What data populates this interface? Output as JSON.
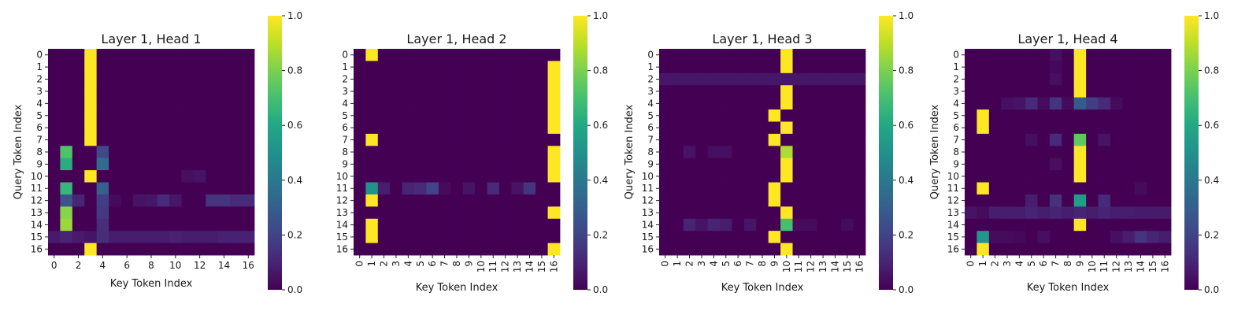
{
  "colorbar": {
    "ticks": [
      "0.0",
      "0.2",
      "0.4",
      "0.6",
      "0.8",
      "1.0"
    ]
  },
  "chart_data": [
    {
      "type": "heatmap",
      "title": "Layer 1, Head 1",
      "xlabel": "Key Token Index",
      "ylabel": "Query Token Index",
      "x_tick_labels": [
        "0",
        "2",
        "4",
        "6",
        "8",
        "10",
        "12",
        "14",
        "16"
      ],
      "x_tick_rotation": 0,
      "y_tick_labels": [
        "0",
        "1",
        "2",
        "3",
        "4",
        "5",
        "6",
        "7",
        "8",
        "9",
        "10",
        "11",
        "12",
        "13",
        "14",
        "15",
        "16"
      ],
      "vmin": 0,
      "vmax": 1,
      "colormap": "viridis",
      "matrix": [
        [
          0,
          0,
          0,
          1,
          0,
          0,
          0,
          0,
          0,
          0,
          0,
          0,
          0,
          0,
          0,
          0,
          0
        ],
        [
          0,
          0,
          0,
          1,
          0,
          0,
          0,
          0,
          0,
          0,
          0,
          0,
          0,
          0,
          0,
          0,
          0
        ],
        [
          0,
          0,
          0,
          1,
          0,
          0,
          0,
          0,
          0,
          0,
          0,
          0,
          0,
          0,
          0,
          0,
          0
        ],
        [
          0,
          0,
          0,
          1,
          0,
          0,
          0,
          0,
          0,
          0,
          0,
          0,
          0,
          0,
          0,
          0,
          0
        ],
        [
          0,
          0,
          0,
          1,
          0,
          0,
          0,
          0,
          0,
          0,
          0,
          0,
          0,
          0,
          0,
          0,
          0
        ],
        [
          0,
          0,
          0,
          1,
          0,
          0,
          0,
          0,
          0,
          0,
          0,
          0,
          0,
          0,
          0,
          0,
          0
        ],
        [
          0,
          0,
          0,
          1,
          0,
          0,
          0,
          0,
          0,
          0,
          0,
          0,
          0,
          0,
          0,
          0,
          0
        ],
        [
          0,
          0,
          0,
          1,
          0,
          0,
          0,
          0,
          0,
          0,
          0,
          0,
          0,
          0,
          0,
          0,
          0
        ],
        [
          0,
          0.72,
          0,
          0,
          0.22,
          0,
          0,
          0,
          0,
          0,
          0,
          0,
          0,
          0,
          0,
          0,
          0
        ],
        [
          0,
          0.62,
          0,
          0,
          0.35,
          0,
          0,
          0,
          0,
          0,
          0,
          0,
          0,
          0,
          0,
          0,
          0
        ],
        [
          0,
          0,
          0,
          1,
          0,
          0,
          0,
          0,
          0,
          0,
          0,
          0.04,
          0.05,
          0,
          0,
          0,
          0
        ],
        [
          0,
          0.66,
          0,
          0,
          0.3,
          0,
          0,
          0,
          0,
          0,
          0,
          0,
          0,
          0,
          0,
          0,
          0
        ],
        [
          0,
          0.25,
          0.1,
          0,
          0.18,
          0.03,
          0,
          0.05,
          0.06,
          0.12,
          0.06,
          0,
          0,
          0.15,
          0.15,
          0.12,
          0.12
        ],
        [
          0,
          0.82,
          0,
          0,
          0.17,
          0,
          0,
          0,
          0,
          0,
          0,
          0,
          0,
          0,
          0,
          0,
          0
        ],
        [
          0,
          0.85,
          0,
          0,
          0.13,
          0,
          0,
          0,
          0,
          0,
          0,
          0,
          0,
          0,
          0,
          0,
          0
        ],
        [
          0.07,
          0.1,
          0.07,
          0.05,
          0.13,
          0.08,
          0.08,
          0.08,
          0.08,
          0.08,
          0.09,
          0.08,
          0.08,
          0.08,
          0.09,
          0.09,
          0.09
        ],
        [
          0,
          0,
          0,
          1,
          0,
          0,
          0,
          0,
          0,
          0,
          0,
          0,
          0,
          0,
          0,
          0,
          0
        ]
      ]
    },
    {
      "type": "heatmap",
      "title": "Layer 1, Head 2",
      "xlabel": "Key Token Index",
      "ylabel": "",
      "x_tick_labels": [
        "0",
        "1",
        "2",
        "3",
        "4",
        "5",
        "6",
        "7",
        "8",
        "9",
        "10",
        "11",
        "12",
        "13",
        "14",
        "15",
        "16"
      ],
      "x_tick_rotation": 90,
      "y_tick_labels": [
        "0",
        "1",
        "2",
        "3",
        "4",
        "5",
        "6",
        "7",
        "8",
        "9",
        "10",
        "11",
        "12",
        "13",
        "14",
        "15",
        "16"
      ],
      "vmin": 0,
      "vmax": 1,
      "colormap": "viridis",
      "matrix": [
        [
          0,
          1,
          0,
          0,
          0,
          0,
          0,
          0,
          0,
          0,
          0,
          0,
          0,
          0,
          0,
          0,
          0
        ],
        [
          0,
          0,
          0,
          0,
          0,
          0,
          0,
          0,
          0,
          0,
          0,
          0,
          0,
          0,
          0,
          0,
          1
        ],
        [
          0,
          0,
          0,
          0,
          0,
          0,
          0,
          0,
          0,
          0,
          0,
          0,
          0,
          0,
          0,
          0,
          1
        ],
        [
          0,
          0,
          0,
          0,
          0,
          0,
          0,
          0,
          0,
          0,
          0,
          0,
          0,
          0,
          0,
          0,
          1
        ],
        [
          0,
          0,
          0,
          0,
          0,
          0,
          0,
          0,
          0,
          0,
          0,
          0,
          0,
          0,
          0,
          0,
          1
        ],
        [
          0,
          0,
          0,
          0,
          0,
          0,
          0,
          0,
          0,
          0,
          0,
          0,
          0,
          0,
          0,
          0,
          1
        ],
        [
          0,
          0,
          0,
          0,
          0,
          0,
          0,
          0,
          0,
          0,
          0,
          0,
          0,
          0,
          0,
          0,
          1
        ],
        [
          0,
          1,
          0,
          0,
          0,
          0,
          0,
          0,
          0,
          0,
          0,
          0,
          0,
          0,
          0,
          0,
          0
        ],
        [
          0,
          0,
          0,
          0,
          0,
          0,
          0,
          0,
          0,
          0,
          0,
          0,
          0,
          0,
          0,
          0,
          1
        ],
        [
          0,
          0,
          0,
          0,
          0,
          0,
          0,
          0,
          0,
          0,
          0,
          0,
          0,
          0,
          0,
          0,
          1
        ],
        [
          0,
          0,
          0,
          0,
          0,
          0,
          0,
          0,
          0,
          0,
          0,
          0,
          0,
          0,
          0,
          0,
          1
        ],
        [
          0,
          0.5,
          0.08,
          0,
          0.1,
          0.12,
          0.2,
          0.03,
          0,
          0.05,
          0,
          0.12,
          0,
          0.05,
          0.15,
          0,
          0
        ],
        [
          0,
          1,
          0,
          0,
          0,
          0,
          0,
          0,
          0,
          0,
          0,
          0,
          0,
          0,
          0,
          0,
          0
        ],
        [
          0,
          0,
          0,
          0,
          0,
          0,
          0,
          0,
          0,
          0,
          0,
          0,
          0,
          0,
          0,
          0,
          1
        ],
        [
          0,
          1,
          0,
          0,
          0,
          0,
          0,
          0,
          0,
          0,
          0,
          0,
          0,
          0,
          0,
          0,
          0
        ],
        [
          0,
          1,
          0,
          0,
          0,
          0,
          0,
          0,
          0,
          0,
          0,
          0,
          0,
          0,
          0,
          0,
          0
        ],
        [
          0,
          0,
          0,
          0,
          0,
          0,
          0,
          0,
          0,
          0,
          0,
          0,
          0,
          0,
          0,
          0,
          1
        ]
      ]
    },
    {
      "type": "heatmap",
      "title": "Layer 1, Head 3",
      "xlabel": "Key Token Index",
      "ylabel": "Query Token Index",
      "x_tick_labels": [
        "0",
        "1",
        "2",
        "3",
        "4",
        "5",
        "6",
        "7",
        "8",
        "9",
        "10",
        "11",
        "12",
        "13",
        "14",
        "15",
        "16"
      ],
      "x_tick_rotation": 90,
      "y_tick_labels": [
        "0",
        "1",
        "2",
        "3",
        "4",
        "5",
        "6",
        "7",
        "8",
        "9",
        "10",
        "11",
        "12",
        "13",
        "14",
        "15",
        "16"
      ],
      "vmin": 0,
      "vmax": 1,
      "colormap": "viridis",
      "matrix": [
        [
          0,
          0,
          0,
          0,
          0,
          0,
          0,
          0,
          0,
          0,
          1,
          0,
          0,
          0,
          0,
          0,
          0
        ],
        [
          0,
          0,
          0,
          0,
          0,
          0,
          0,
          0,
          0,
          0,
          1,
          0,
          0,
          0,
          0,
          0,
          0
        ],
        [
          0.06,
          0.06,
          0.06,
          0.06,
          0.06,
          0.06,
          0.06,
          0.06,
          0.06,
          0.06,
          0.06,
          0.06,
          0.06,
          0.06,
          0.06,
          0.06,
          0.06
        ],
        [
          0,
          0,
          0,
          0,
          0,
          0,
          0,
          0,
          0,
          0,
          1,
          0,
          0,
          0,
          0,
          0,
          0
        ],
        [
          0,
          0,
          0,
          0,
          0,
          0,
          0,
          0,
          0,
          0,
          1,
          0,
          0,
          0,
          0,
          0,
          0
        ],
        [
          0,
          0,
          0,
          0,
          0,
          0,
          0,
          0,
          0,
          1,
          0,
          0,
          0,
          0,
          0,
          0,
          0
        ],
        [
          0,
          0,
          0,
          0,
          0,
          0,
          0,
          0,
          0,
          0,
          1,
          0,
          0,
          0,
          0,
          0,
          0
        ],
        [
          0,
          0,
          0,
          0,
          0,
          0,
          0,
          0,
          0,
          1,
          0,
          0,
          0,
          0,
          0,
          0,
          0
        ],
        [
          0,
          0,
          0.05,
          0,
          0.04,
          0.04,
          0,
          0,
          0,
          0,
          0.88,
          0,
          0,
          0,
          0,
          0,
          0
        ],
        [
          0,
          0,
          0,
          0,
          0,
          0,
          0,
          0,
          0,
          0,
          1,
          0,
          0,
          0,
          0,
          0,
          0
        ],
        [
          0,
          0,
          0,
          0,
          0,
          0,
          0,
          0,
          0,
          0,
          1,
          0,
          0,
          0,
          0,
          0,
          0
        ],
        [
          0,
          0,
          0,
          0,
          0,
          0,
          0,
          0,
          0,
          1,
          0,
          0,
          0,
          0,
          0,
          0,
          0
        ],
        [
          0,
          0,
          0,
          0,
          0,
          0,
          0,
          0,
          0,
          1,
          0,
          0,
          0,
          0,
          0,
          0,
          0
        ],
        [
          0,
          0,
          0,
          0,
          0,
          0,
          0,
          0,
          0,
          0,
          1,
          0,
          0,
          0,
          0,
          0,
          0
        ],
        [
          0,
          0,
          0.1,
          0.05,
          0.1,
          0.08,
          0,
          0.06,
          0,
          0,
          0.7,
          0.03,
          0.03,
          0,
          0,
          0.03,
          0
        ],
        [
          0,
          0,
          0,
          0,
          0,
          0,
          0,
          0,
          0,
          1,
          0,
          0,
          0,
          0,
          0,
          0,
          0
        ],
        [
          0,
          0,
          0,
          0,
          0,
          0,
          0,
          0,
          0,
          0,
          1,
          0,
          0,
          0,
          0,
          0,
          0
        ]
      ]
    },
    {
      "type": "heatmap",
      "title": "Layer 1, Head 4",
      "xlabel": "Key Token Index",
      "ylabel": "Query Token Index",
      "x_tick_labels": [
        "0",
        "1",
        "2",
        "3",
        "4",
        "5",
        "6",
        "7",
        "8",
        "9",
        "10",
        "11",
        "12",
        "13",
        "14",
        "15",
        "16"
      ],
      "x_tick_rotation": 90,
      "y_tick_labels": [
        "0",
        "1",
        "2",
        "3",
        "4",
        "5",
        "6",
        "7",
        "8",
        "9",
        "10",
        "11",
        "12",
        "13",
        "14",
        "15",
        "16"
      ],
      "vmin": 0,
      "vmax": 1,
      "colormap": "viridis",
      "matrix": [
        [
          0,
          0,
          0,
          0,
          0,
          0,
          0,
          0.04,
          0,
          1,
          0,
          0,
          0,
          0,
          0,
          0,
          0
        ],
        [
          0,
          0,
          0,
          0,
          0,
          0,
          0,
          0.02,
          0,
          1,
          0,
          0,
          0,
          0,
          0,
          0,
          0
        ],
        [
          0,
          0,
          0,
          0,
          0,
          0,
          0,
          0.04,
          0,
          1,
          0,
          0,
          0,
          0,
          0,
          0,
          0
        ],
        [
          0,
          0,
          0,
          0,
          0,
          0,
          0,
          0,
          0,
          1,
          0,
          0,
          0,
          0,
          0,
          0,
          0
        ],
        [
          0,
          0,
          0,
          0.04,
          0.05,
          0.12,
          0.03,
          0.15,
          0.03,
          0.28,
          0.18,
          0.12,
          0.03,
          0,
          0,
          0,
          0
        ],
        [
          0,
          1,
          0,
          0,
          0,
          0,
          0,
          0,
          0,
          0,
          0,
          0,
          0,
          0,
          0,
          0,
          0
        ],
        [
          0,
          1,
          0,
          0,
          0,
          0,
          0,
          0,
          0,
          0,
          0,
          0,
          0,
          0,
          0,
          0,
          0
        ],
        [
          0,
          0,
          0,
          0,
          0,
          0.04,
          0,
          0.12,
          0,
          0.75,
          0,
          0.05,
          0,
          0,
          0,
          0,
          0
        ],
        [
          0,
          0,
          0,
          0,
          0,
          0,
          0,
          0,
          0,
          1,
          0,
          0,
          0,
          0,
          0,
          0,
          0
        ],
        [
          0,
          0,
          0,
          0,
          0,
          0,
          0,
          0.04,
          0,
          1,
          0,
          0,
          0,
          0,
          0,
          0,
          0
        ],
        [
          0,
          0,
          0,
          0,
          0,
          0,
          0,
          0,
          0,
          1,
          0,
          0,
          0,
          0,
          0,
          0,
          0
        ],
        [
          0,
          1,
          0,
          0,
          0,
          0,
          0,
          0,
          0,
          0,
          0,
          0,
          0,
          0,
          0.03,
          0,
          0
        ],
        [
          0,
          0,
          0,
          0,
          0,
          0.08,
          0,
          0.14,
          0,
          0.55,
          0,
          0.12,
          0,
          0,
          0,
          0,
          0
        ],
        [
          0.05,
          0.03,
          0.08,
          0.08,
          0.08,
          0.1,
          0.08,
          0.1,
          0.08,
          0.1,
          0.08,
          0.1,
          0.08,
          0.08,
          0.07,
          0.07,
          0.07
        ],
        [
          0,
          0,
          0,
          0,
          0,
          0,
          0,
          0,
          0,
          1,
          0,
          0,
          0,
          0,
          0,
          0,
          0
        ],
        [
          0,
          0.52,
          0.03,
          0.03,
          0.02,
          0,
          0.04,
          0,
          0,
          0,
          0,
          0,
          0.04,
          0.08,
          0.15,
          0.1,
          0.08
        ],
        [
          0,
          1,
          0,
          0,
          0,
          0,
          0,
          0,
          0,
          0,
          0,
          0,
          0,
          0,
          0,
          0,
          0
        ]
      ]
    }
  ]
}
